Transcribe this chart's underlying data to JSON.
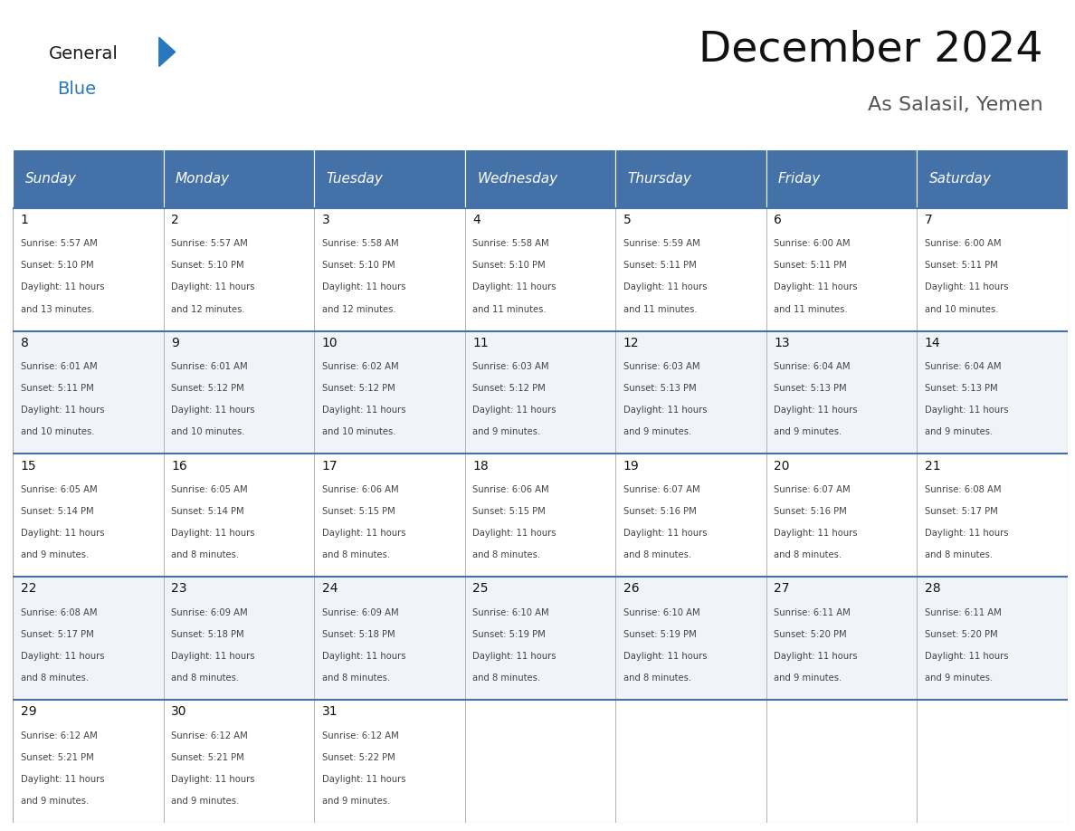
{
  "title": "December 2024",
  "subtitle": "As Salasil, Yemen",
  "header_color": "#4472a8",
  "header_text_color": "#ffffff",
  "day_names": [
    "Sunday",
    "Monday",
    "Tuesday",
    "Wednesday",
    "Thursday",
    "Friday",
    "Saturday"
  ],
  "weeks": [
    [
      {
        "day": 1,
        "sunrise": "5:57 AM",
        "sunset": "5:10 PM",
        "daylight": "11 hours and 13 minutes"
      },
      {
        "day": 2,
        "sunrise": "5:57 AM",
        "sunset": "5:10 PM",
        "daylight": "11 hours and 12 minutes"
      },
      {
        "day": 3,
        "sunrise": "5:58 AM",
        "sunset": "5:10 PM",
        "daylight": "11 hours and 12 minutes"
      },
      {
        "day": 4,
        "sunrise": "5:58 AM",
        "sunset": "5:10 PM",
        "daylight": "11 hours and 11 minutes"
      },
      {
        "day": 5,
        "sunrise": "5:59 AM",
        "sunset": "5:11 PM",
        "daylight": "11 hours and 11 minutes"
      },
      {
        "day": 6,
        "sunrise": "6:00 AM",
        "sunset": "5:11 PM",
        "daylight": "11 hours and 11 minutes"
      },
      {
        "day": 7,
        "sunrise": "6:00 AM",
        "sunset": "5:11 PM",
        "daylight": "11 hours and 10 minutes"
      }
    ],
    [
      {
        "day": 8,
        "sunrise": "6:01 AM",
        "sunset": "5:11 PM",
        "daylight": "11 hours and 10 minutes"
      },
      {
        "day": 9,
        "sunrise": "6:01 AM",
        "sunset": "5:12 PM",
        "daylight": "11 hours and 10 minutes"
      },
      {
        "day": 10,
        "sunrise": "6:02 AM",
        "sunset": "5:12 PM",
        "daylight": "11 hours and 10 minutes"
      },
      {
        "day": 11,
        "sunrise": "6:03 AM",
        "sunset": "5:12 PM",
        "daylight": "11 hours and 9 minutes"
      },
      {
        "day": 12,
        "sunrise": "6:03 AM",
        "sunset": "5:13 PM",
        "daylight": "11 hours and 9 minutes"
      },
      {
        "day": 13,
        "sunrise": "6:04 AM",
        "sunset": "5:13 PM",
        "daylight": "11 hours and 9 minutes"
      },
      {
        "day": 14,
        "sunrise": "6:04 AM",
        "sunset": "5:13 PM",
        "daylight": "11 hours and 9 minutes"
      }
    ],
    [
      {
        "day": 15,
        "sunrise": "6:05 AM",
        "sunset": "5:14 PM",
        "daylight": "11 hours and 9 minutes"
      },
      {
        "day": 16,
        "sunrise": "6:05 AM",
        "sunset": "5:14 PM",
        "daylight": "11 hours and 8 minutes"
      },
      {
        "day": 17,
        "sunrise": "6:06 AM",
        "sunset": "5:15 PM",
        "daylight": "11 hours and 8 minutes"
      },
      {
        "day": 18,
        "sunrise": "6:06 AM",
        "sunset": "5:15 PM",
        "daylight": "11 hours and 8 minutes"
      },
      {
        "day": 19,
        "sunrise": "6:07 AM",
        "sunset": "5:16 PM",
        "daylight": "11 hours and 8 minutes"
      },
      {
        "day": 20,
        "sunrise": "6:07 AM",
        "sunset": "5:16 PM",
        "daylight": "11 hours and 8 minutes"
      },
      {
        "day": 21,
        "sunrise": "6:08 AM",
        "sunset": "5:17 PM",
        "daylight": "11 hours and 8 minutes"
      }
    ],
    [
      {
        "day": 22,
        "sunrise": "6:08 AM",
        "sunset": "5:17 PM",
        "daylight": "11 hours and 8 minutes"
      },
      {
        "day": 23,
        "sunrise": "6:09 AM",
        "sunset": "5:18 PM",
        "daylight": "11 hours and 8 minutes"
      },
      {
        "day": 24,
        "sunrise": "6:09 AM",
        "sunset": "5:18 PM",
        "daylight": "11 hours and 8 minutes"
      },
      {
        "day": 25,
        "sunrise": "6:10 AM",
        "sunset": "5:19 PM",
        "daylight": "11 hours and 8 minutes"
      },
      {
        "day": 26,
        "sunrise": "6:10 AM",
        "sunset": "5:19 PM",
        "daylight": "11 hours and 8 minutes"
      },
      {
        "day": 27,
        "sunrise": "6:11 AM",
        "sunset": "5:20 PM",
        "daylight": "11 hours and 9 minutes"
      },
      {
        "day": 28,
        "sunrise": "6:11 AM",
        "sunset": "5:20 PM",
        "daylight": "11 hours and 9 minutes"
      }
    ],
    [
      {
        "day": 29,
        "sunrise": "6:12 AM",
        "sunset": "5:21 PM",
        "daylight": "11 hours and 9 minutes"
      },
      {
        "day": 30,
        "sunrise": "6:12 AM",
        "sunset": "5:21 PM",
        "daylight": "11 hours and 9 minutes"
      },
      {
        "day": 31,
        "sunrise": "6:12 AM",
        "sunset": "5:22 PM",
        "daylight": "11 hours and 9 minutes"
      },
      null,
      null,
      null,
      null
    ]
  ],
  "bg_color": "#ffffff",
  "cell_even_color": "#ffffff",
  "cell_odd_color": "#f0f4f8",
  "grid_color": "#aaaaaa",
  "row_divider_color": "#4472a8",
  "text_color": "#444444",
  "day_num_color": "#111111",
  "logo_general_color": "#1a1a1a",
  "logo_blue_color": "#2878c0",
  "header_font_size": 11,
  "title_font_size": 34,
  "subtitle_font_size": 16,
  "day_num_font_size": 10,
  "cell_text_font_size": 7.2
}
